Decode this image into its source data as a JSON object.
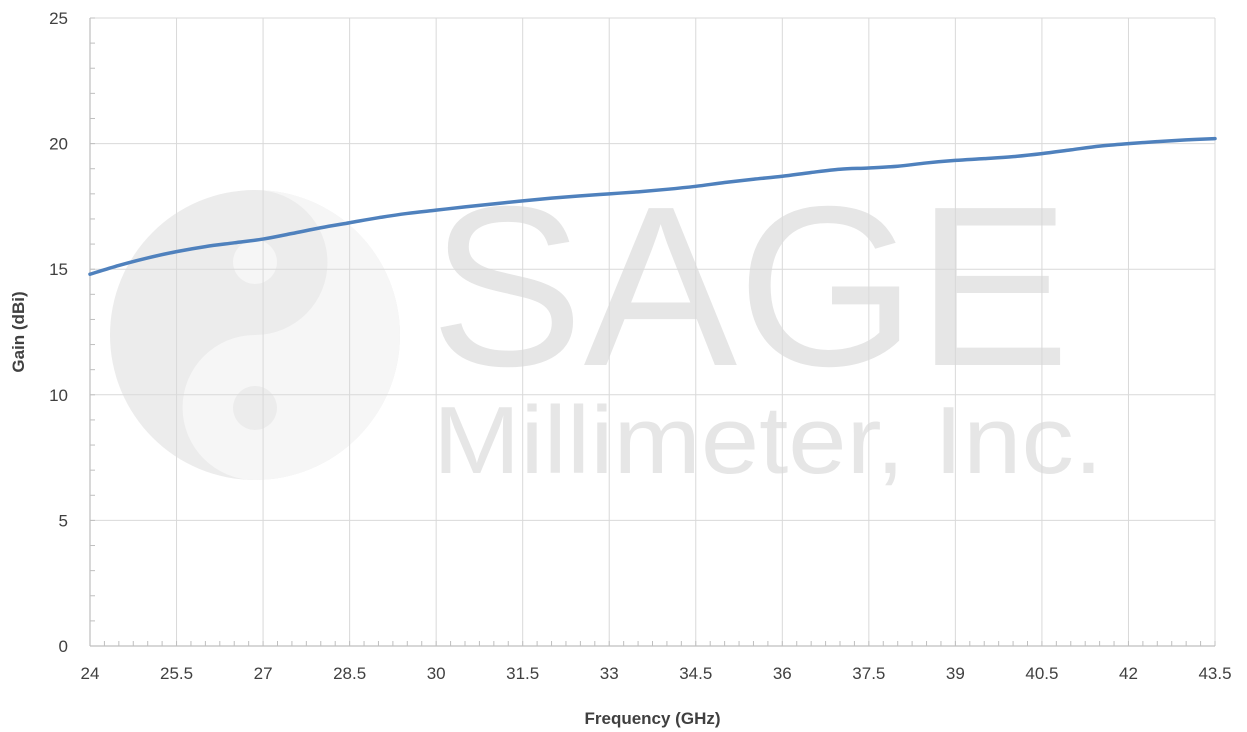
{
  "chart_data": {
    "type": "line",
    "title": "",
    "xlabel": "Frequency (GHz)",
    "ylabel": "Gain (dBi)",
    "xlim": [
      24,
      43.5
    ],
    "ylim": [
      0,
      25
    ],
    "x_ticks": [
      "24",
      "25.5",
      "27",
      "28.5",
      "30",
      "31.5",
      "33",
      "34.5",
      "36",
      "37.5",
      "39",
      "40.5",
      "42",
      "43.5"
    ],
    "y_ticks": [
      "0",
      "5",
      "10",
      "15",
      "20",
      "25"
    ],
    "grid": true,
    "legend": "none",
    "series": [
      {
        "color": "#4f81bd",
        "x": [
          24,
          24.5,
          25,
          25.5,
          26,
          26.5,
          27,
          27.5,
          28,
          28.5,
          29,
          29.5,
          30,
          30.5,
          31,
          31.5,
          32,
          32.5,
          33,
          33.5,
          34,
          34.5,
          35,
          35.5,
          36,
          36.5,
          37,
          37.5,
          38,
          38.5,
          39,
          39.5,
          40,
          40.5,
          41,
          41.5,
          42,
          42.5,
          43,
          43.5
        ],
        "y": [
          14.8,
          15.15,
          15.45,
          15.7,
          15.9,
          16.05,
          16.2,
          16.42,
          16.65,
          16.85,
          17.05,
          17.22,
          17.35,
          17.48,
          17.6,
          17.72,
          17.83,
          17.92,
          18.0,
          18.08,
          18.18,
          18.3,
          18.45,
          18.58,
          18.7,
          18.85,
          18.98,
          19.03,
          19.1,
          19.23,
          19.33,
          19.4,
          19.48,
          19.6,
          19.75,
          19.9,
          20.0,
          20.08,
          20.15,
          20.2
        ]
      }
    ]
  },
  "watermark": {
    "line1": "SAGE",
    "line2": "Millimeter, Inc."
  }
}
